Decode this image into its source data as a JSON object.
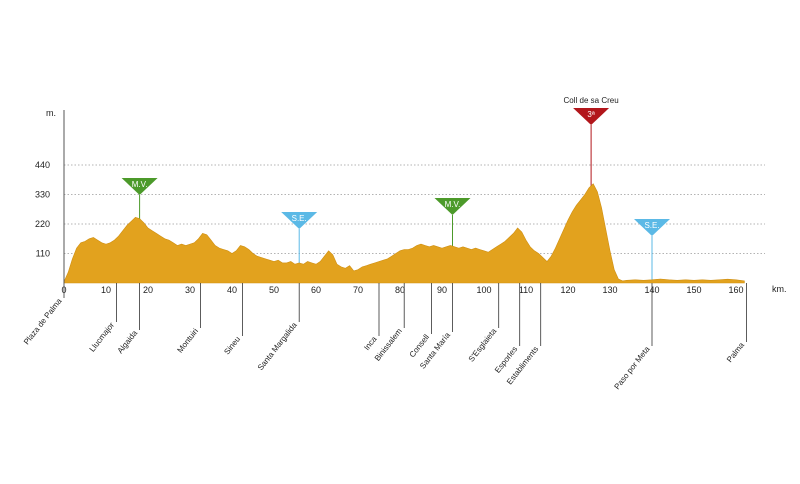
{
  "chart_data": {
    "type": "area",
    "xlabel": "km.",
    "ylabel": "m.",
    "xlim": [
      0,
      167
    ],
    "ylim": [
      0,
      645
    ],
    "grid": true,
    "legend": "none",
    "fill_color": "#e2a21e",
    "xticks": [
      0,
      10,
      20,
      30,
      40,
      50,
      60,
      70,
      80,
      90,
      100,
      110,
      120,
      130,
      140,
      150,
      160
    ],
    "yticks": [
      110,
      220,
      330,
      440
    ],
    "x": [
      0,
      1,
      2,
      3,
      4,
      5,
      6,
      7,
      8,
      9,
      10,
      11,
      12,
      13,
      14,
      15,
      16,
      17,
      18,
      19,
      20,
      21,
      22,
      23,
      24,
      25,
      26,
      27,
      28,
      29,
      30,
      31,
      32,
      33,
      34,
      35,
      36,
      37,
      38,
      39,
      40,
      41,
      42,
      43,
      44,
      45,
      46,
      47,
      48,
      49,
      50,
      51,
      52,
      53,
      54,
      55,
      56,
      57,
      58,
      59,
      60,
      61,
      62,
      63,
      64,
      65,
      66,
      67,
      68,
      69,
      70,
      71,
      72,
      73,
      74,
      75,
      76,
      77,
      78,
      79,
      80,
      81,
      82,
      83,
      84,
      85,
      86,
      87,
      88,
      89,
      90,
      91,
      92,
      93,
      94,
      95,
      96,
      97,
      98,
      99,
      100,
      101,
      102,
      103,
      104,
      105,
      106,
      107,
      108,
      109,
      110,
      111,
      112,
      113,
      114,
      115,
      116,
      117,
      118,
      119,
      120,
      121,
      122,
      123,
      124,
      125,
      126,
      127,
      128,
      129,
      130,
      131,
      132,
      133,
      134,
      136,
      138,
      140,
      142,
      144,
      146,
      148,
      150,
      152,
      154,
      156,
      158,
      160,
      162
    ],
    "y": [
      5,
      40,
      90,
      130,
      150,
      155,
      165,
      170,
      160,
      150,
      145,
      150,
      160,
      175,
      195,
      215,
      230,
      245,
      240,
      225,
      205,
      195,
      185,
      175,
      165,
      160,
      150,
      140,
      145,
      140,
      145,
      150,
      165,
      185,
      180,
      160,
      140,
      130,
      125,
      120,
      110,
      120,
      140,
      135,
      125,
      110,
      100,
      95,
      90,
      85,
      80,
      85,
      75,
      75,
      80,
      70,
      75,
      70,
      80,
      75,
      70,
      80,
      100,
      120,
      105,
      70,
      60,
      55,
      65,
      45,
      50,
      60,
      65,
      70,
      75,
      80,
      85,
      90,
      100,
      110,
      120,
      125,
      125,
      130,
      140,
      145,
      140,
      135,
      140,
      135,
      130,
      135,
      140,
      135,
      130,
      135,
      130,
      125,
      130,
      125,
      120,
      115,
      125,
      135,
      145,
      155,
      170,
      185,
      205,
      190,
      160,
      135,
      120,
      110,
      95,
      80,
      100,
      130,
      165,
      200,
      235,
      265,
      290,
      310,
      330,
      355,
      370,
      340,
      280,
      200,
      120,
      50,
      15,
      8,
      10,
      12,
      10,
      12,
      15,
      12,
      10,
      12,
      10,
      12,
      10,
      12,
      14,
      12,
      8
    ],
    "markers": [
      {
        "label": "M.V.",
        "km": 18,
        "color": "#4c9a2a"
      },
      {
        "label": "S.E.",
        "km": 56,
        "color": "#5bb9e6"
      },
      {
        "label": "M.V.",
        "km": 92.5,
        "color": "#4c9a2a"
      },
      {
        "label": "3ª",
        "title": "Coll de sa Creu",
        "km": 125.5,
        "color": "#b2161b"
      },
      {
        "label": "S.E.",
        "km": 140,
        "color": "#5bb9e6"
      }
    ],
    "places": [
      {
        "name": "Plaza de Palma",
        "km": 0
      },
      {
        "name": "Llucmajor",
        "km": 12.5
      },
      {
        "name": "Algaida",
        "km": 18
      },
      {
        "name": "Montuiri",
        "km": 32.5
      },
      {
        "name": "Sineu",
        "km": 42.5
      },
      {
        "name": "Santa Margalida",
        "km": 56
      },
      {
        "name": "Inca",
        "km": 75
      },
      {
        "name": "Binissalem",
        "km": 81
      },
      {
        "name": "Consell",
        "km": 87.5
      },
      {
        "name": "Santa María",
        "km": 92.5
      },
      {
        "name": "S'Esglaieta",
        "km": 103.5
      },
      {
        "name": "Esporles",
        "km": 108.5
      },
      {
        "name": "Establiments",
        "km": 113.5
      },
      {
        "name": "Paso por Meta",
        "km": 140
      },
      {
        "name": "Palma",
        "km": 162.5
      }
    ]
  }
}
